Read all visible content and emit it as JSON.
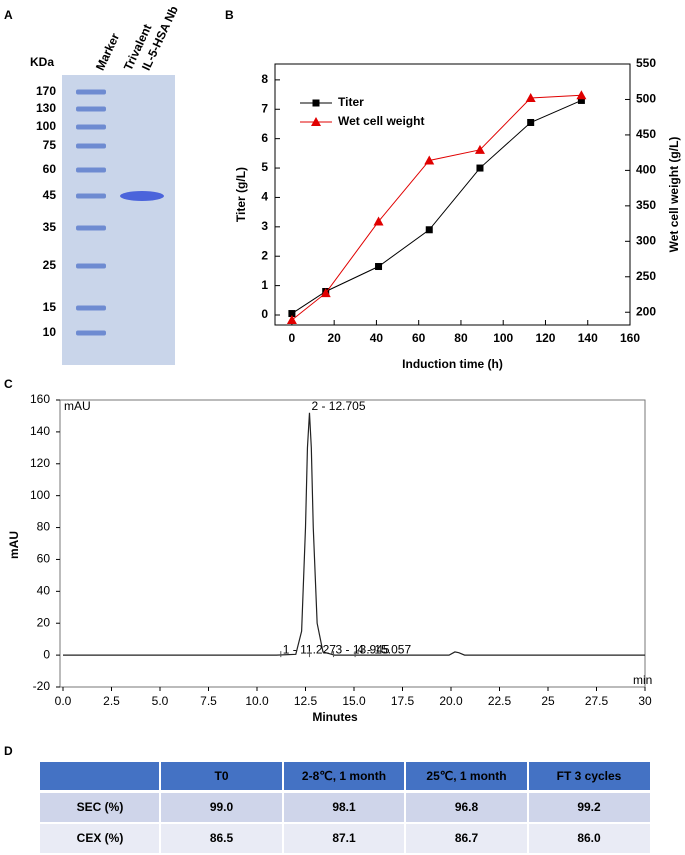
{
  "panel_labels": [
    "A",
    "B",
    "C",
    "D"
  ],
  "gel": {
    "unit_label": "KDa",
    "lanes": [
      "Marker",
      "Trivalent",
      "IL-5-HSA Nb"
    ],
    "markers": [
      170,
      130,
      100,
      75,
      60,
      45,
      35,
      25,
      15,
      10
    ],
    "band_color": "#4f72c8",
    "sample_color": "#3550d8",
    "gel_color": "#c9d5ea"
  },
  "chart_data": [
    {
      "type": "line",
      "x_label": "Induction time (h)",
      "y_label": "Titer (g/L)",
      "y2_label": "Wet cell weight (g/L)",
      "x": [
        0,
        16,
        41,
        65,
        89,
        113,
        137
      ],
      "series": [
        {
          "name": "Titer",
          "color": "#000000",
          "marker": "square",
          "values": [
            0.05,
            0.8,
            1.65,
            2.9,
            5.0,
            6.55,
            7.3
          ]
        },
        {
          "name": "Wet cell weight",
          "color": "#e00000",
          "marker": "triangle",
          "axis": "y2",
          "values": [
            189,
            227,
            328,
            414,
            429,
            502,
            506
          ]
        }
      ],
      "xlim": [
        -8,
        160
      ],
      "xticks": [
        0,
        20,
        40,
        60,
        80,
        100,
        120,
        140,
        160
      ],
      "ylim": [
        -0.34,
        8.54
      ],
      "yticks": [
        0,
        1,
        2,
        3,
        4,
        5,
        6,
        7,
        8
      ],
      "y2lim": [
        182,
        550
      ],
      "y2ticks": [
        200,
        250,
        300,
        350,
        400,
        450,
        500,
        550
      ],
      "legend": "upper left"
    },
    {
      "type": "chromatogram",
      "x_label": "Minutes",
      "y_label": "mAU",
      "inner_y_unit": "mAU",
      "inner_x_unit": "min",
      "x": [
        0,
        11,
        12.0,
        12.3,
        12.5,
        12.6,
        12.705,
        12.8,
        12.9,
        13.1,
        13.4,
        14,
        19.9,
        20.2,
        20.4,
        20.7,
        30
      ],
      "series": [
        {
          "name": "mAU",
          "color": "#222222",
          "values": [
            0,
            0,
            0.5,
            15,
            80,
            130,
            152,
            130,
            80,
            20,
            2,
            0,
            0,
            2,
            1.5,
            0,
            0
          ]
        }
      ],
      "annotations": [
        {
          "text": "1 - 11.227",
          "x": 11.227
        },
        {
          "text": "2 - 12.705",
          "x": 12.705
        },
        {
          "text": "3 - 13.945",
          "x": 13.945
        },
        {
          "text": "4 - 15.057",
          "x": 15.057
        }
      ],
      "xlim": [
        0,
        30
      ],
      "xticks": [
        {
          "value": 0,
          "label": "0.0"
        },
        2.5,
        {
          "value": 5,
          "label": "5.0"
        },
        7.5,
        {
          "value": 10,
          "label": "10.0"
        },
        12.5,
        {
          "value": 15,
          "label": "15.0"
        },
        17.5,
        {
          "value": 20,
          "label": "20.0"
        },
        22.5,
        25,
        27.5,
        30
      ],
      "ylim": [
        -20,
        160
      ],
      "yticks": [
        -20,
        0,
        20,
        40,
        60,
        80,
        100,
        120,
        140,
        160
      ]
    }
  ],
  "table": {
    "header_color": "#4472c4",
    "row_colors": [
      "#cfd5ea",
      "#e9ebf5"
    ],
    "columns": [
      "T0",
      "2-8℃, 1 month",
      "25℃, 1 month",
      "FT 3 cycles"
    ],
    "rows": [
      {
        "label": "SEC (%)",
        "cells": [
          "99.0",
          "98.1",
          "96.8",
          "99.2"
        ]
      },
      {
        "label": "CEX (%)",
        "cells": [
          "86.5",
          "87.1",
          "86.7",
          "86.0"
        ]
      }
    ]
  }
}
